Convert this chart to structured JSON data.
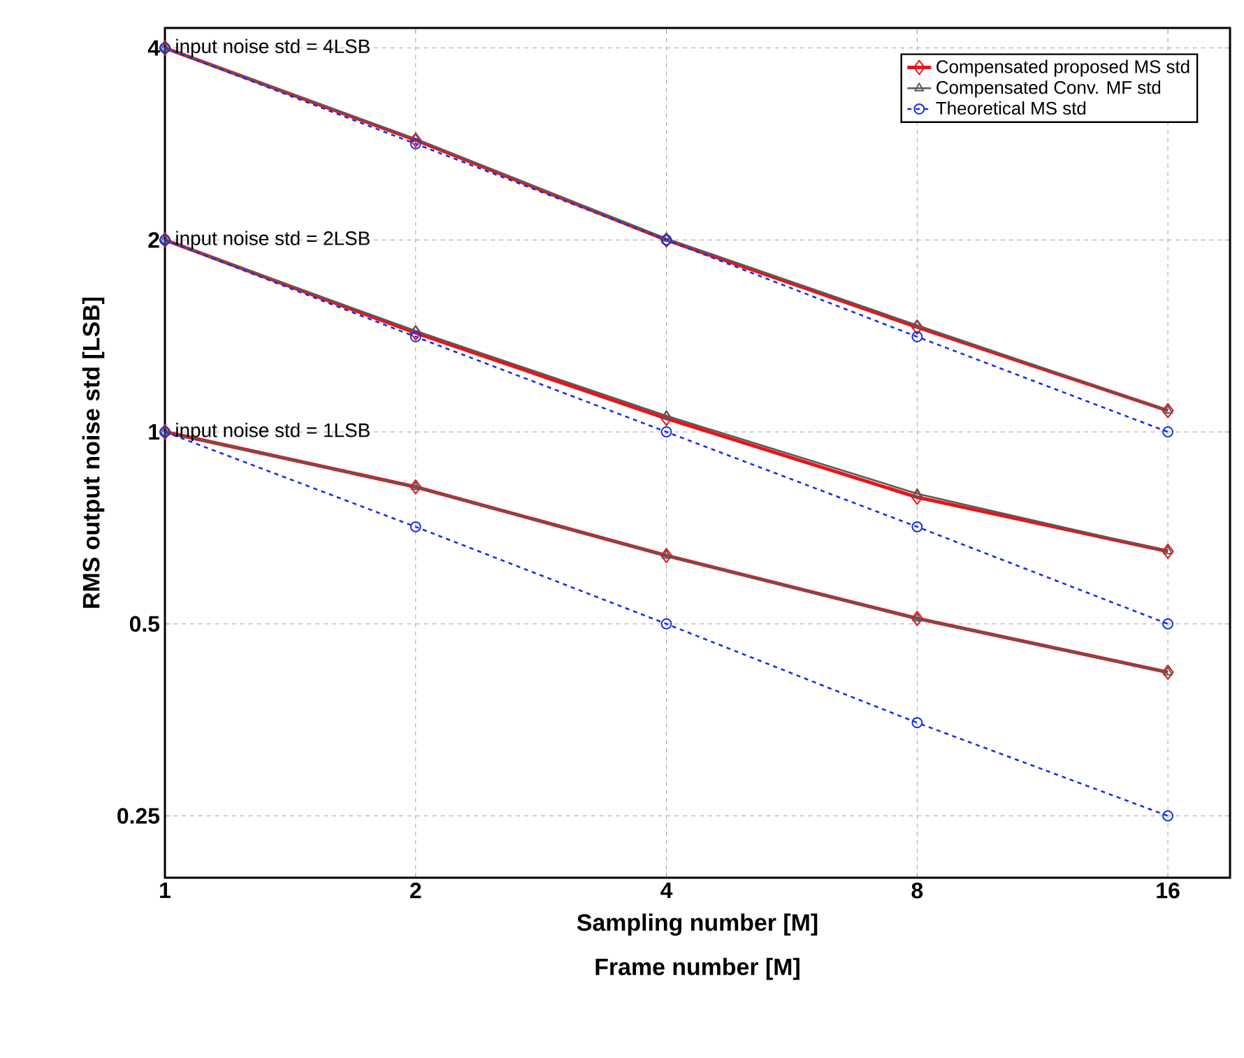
{
  "chart_data": {
    "type": "line",
    "xlabel": "Sampling number [M]",
    "ylabel": "RMS output noise std [LSB]",
    "log": "xy",
    "grid": true,
    "legend": "top right",
    "x": [
      1,
      2,
      4,
      8,
      16
    ],
    "xlim": [
      1,
      19
    ],
    "xticks": [
      1,
      2,
      4,
      8,
      16
    ],
    "ylim": [
      0.2,
      4.3
    ],
    "yticks": [
      0.25,
      0.5,
      1,
      2,
      4
    ],
    "series": [
      {
        "name": "Compensated proposed MS std",
        "color": "#e8141a",
        "marker": "diamond",
        "line_style": "solid",
        "values": [
          4,
          2.87,
          2.0,
          1.46,
          1.08
        ]
      },
      {
        "name": "Compensated Conv. MF std",
        "color": "#5a5a5a",
        "marker": "triangle",
        "line_style": "solid",
        "values": [
          4,
          2.88,
          2.01,
          1.47,
          1.08
        ]
      },
      {
        "name": "Theoretical MS std",
        "color": "#1a2ee6",
        "marker": "circle",
        "line_style": "dashed",
        "values": [
          4,
          2.83,
          2.0,
          1.41,
          1.0
        ]
      },
      {
        "color": "#e8141a",
        "marker": "diamond",
        "line_style": "solid",
        "values": [
          2,
          1.43,
          1.05,
          0.79,
          0.65
        ]
      },
      {
        "color": "#5a5a5a",
        "marker": "triangle",
        "line_style": "solid",
        "values": [
          2,
          1.44,
          1.06,
          0.8,
          0.65
        ]
      },
      {
        "color": "#1a2ee6",
        "marker": "circle",
        "line_style": "dashed",
        "values": [
          2,
          1.41,
          1.0,
          0.71,
          0.5
        ]
      },
      {
        "color": "#e8141a",
        "marker": "diamond",
        "line_style": "solid",
        "values": [
          1,
          0.82,
          0.64,
          0.51,
          0.42
        ]
      },
      {
        "color": "#5a5a5a",
        "marker": "triangle",
        "line_style": "solid",
        "values": [
          1,
          0.82,
          0.64,
          0.51,
          0.42
        ]
      },
      {
        "color": "#1a2ee6",
        "marker": "circle",
        "line_style": "dashed",
        "values": [
          1,
          0.71,
          0.5,
          0.35,
          0.25
        ]
      }
    ],
    "annotations": [
      "input noise std = 4LSB",
      "input noise std = 2LSB",
      "input noise std = 1LSB",
      "Frame number [M]"
    ]
  }
}
